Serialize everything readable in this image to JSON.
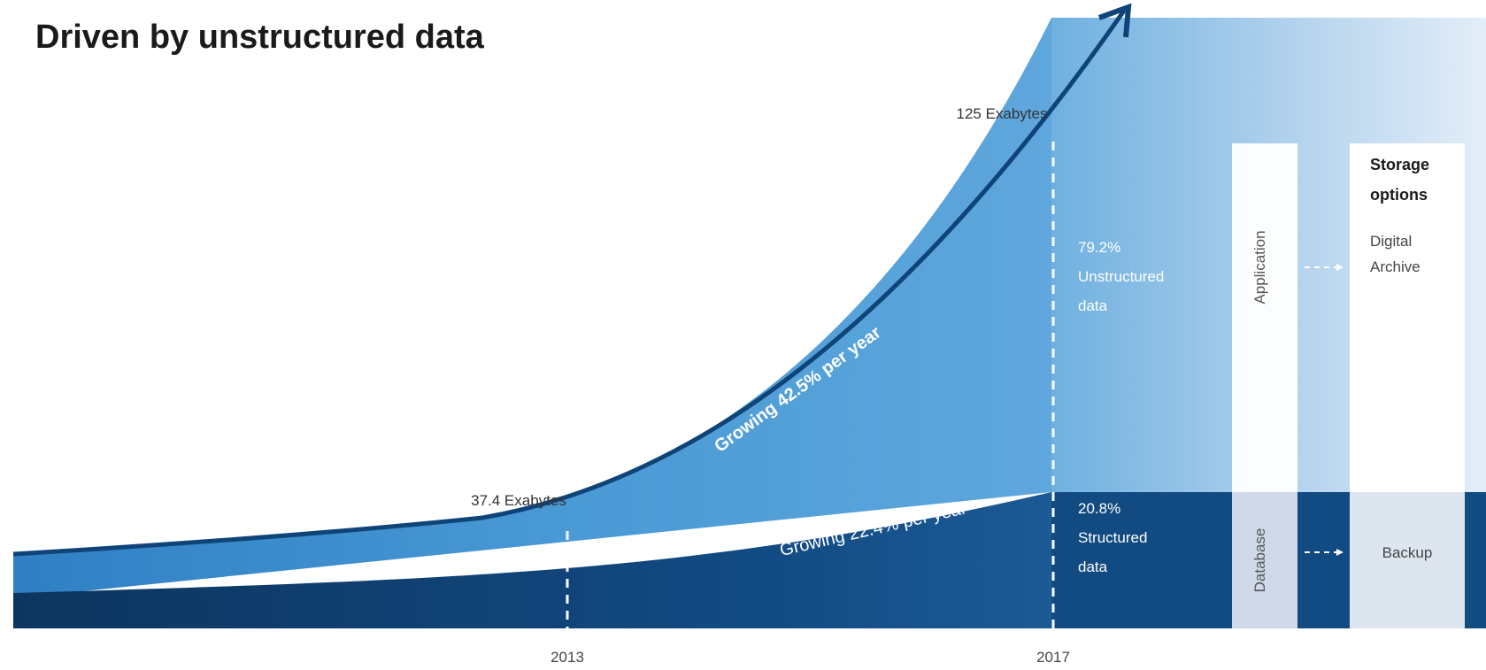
{
  "title": "Driven by unstructured data",
  "colors": {
    "structured": "#0f3d6e",
    "unstructured": "#3a8fd0",
    "arrow": "#0f4478",
    "panel_light": "#cfe1f1",
    "panel_white": "#ffffff",
    "text_dark": "#1a1a1a",
    "text_light": "#ffffff"
  },
  "chart_data": {
    "type": "area",
    "title": "Driven by unstructured data",
    "x_ticks": [
      "2013",
      "2017"
    ],
    "points": [
      {
        "year": "2013",
        "total_label": "37.4 Exabytes",
        "total": 37.4
      },
      {
        "year": "2017",
        "total_label": "125 Exabytes",
        "total": 125
      }
    ],
    "series": [
      {
        "name": "Unstructured data",
        "growth_label": "Growing 42.5% per year",
        "share_2017_label": "79.2%"
      },
      {
        "name": "Structured data",
        "growth_label": "Growing 22.4% per year",
        "share_2017_label": "20.8%"
      }
    ],
    "share_2017": [
      {
        "pct": "79.2%",
        "l1": "Unstructured",
        "l2": "data"
      },
      {
        "pct": "20.8%",
        "l1": "Structured",
        "l2": "data"
      }
    ]
  },
  "side_panel": {
    "application": "Application",
    "database": "Database",
    "storage_title_1": "Storage",
    "storage_title_2": "options",
    "digital_1": "Digital",
    "digital_2": "Archive",
    "backup": "Backup"
  }
}
